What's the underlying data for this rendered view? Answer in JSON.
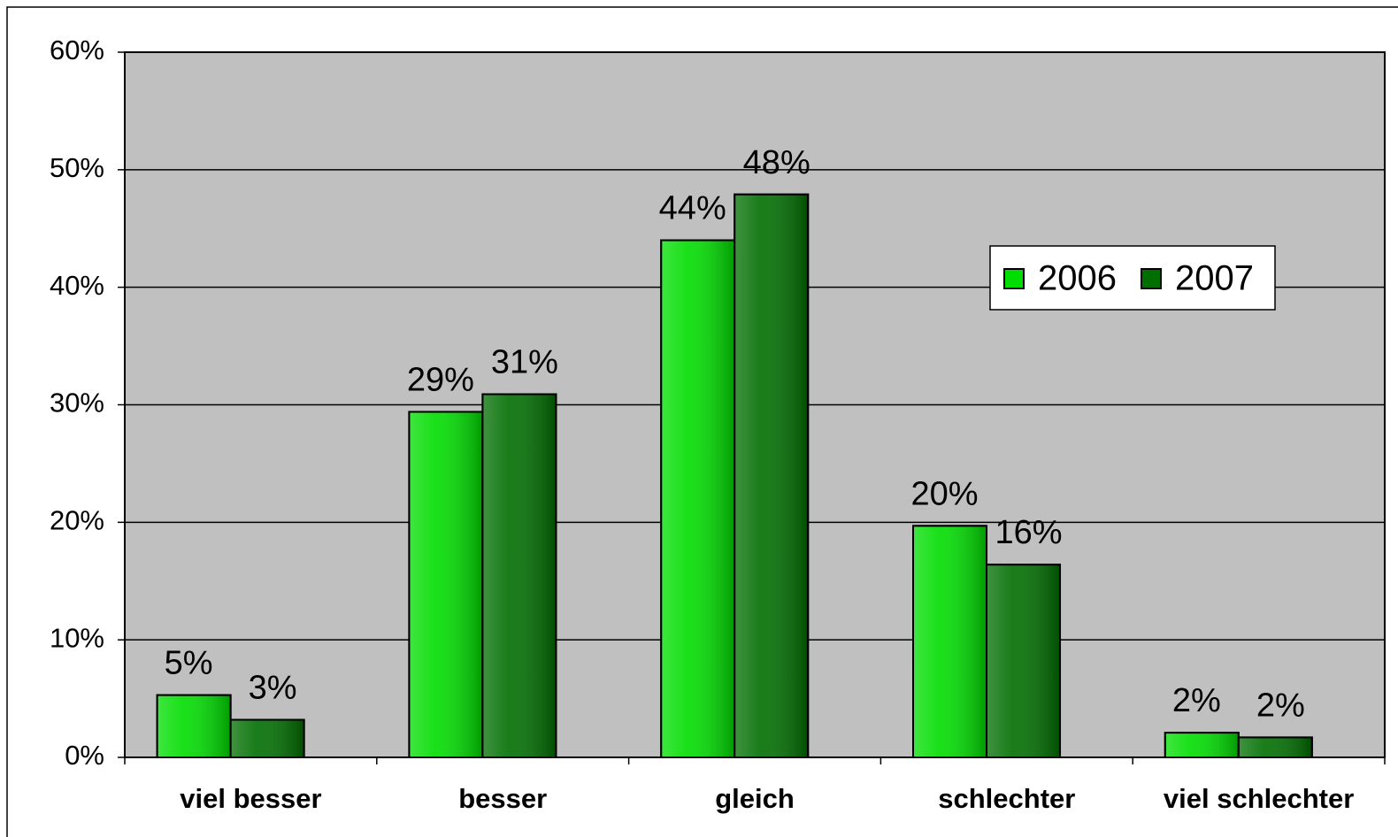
{
  "chart_data": {
    "type": "bar",
    "categories": [
      "viel besser",
      "besser",
      "gleich",
      "schlechter",
      "viel schlechter"
    ],
    "series": [
      {
        "name": "2006",
        "color": "#00dd00",
        "values": [
          5.3,
          29.4,
          44.0,
          19.7,
          2.1
        ],
        "value_labels": [
          "5%",
          "29%",
          "44%",
          "20%",
          "2%"
        ]
      },
      {
        "name": "2007",
        "color": "#006e00",
        "values": [
          3.2,
          30.9,
          47.9,
          16.4,
          1.7
        ],
        "value_labels": [
          "3%",
          "31%",
          "48%",
          "16%",
          "2%"
        ]
      }
    ],
    "ylim": [
      0,
      60
    ],
    "yticks": [
      {
        "value": 0,
        "label": "0%"
      },
      {
        "value": 10,
        "label": "10%"
      },
      {
        "value": 20,
        "label": "20%"
      },
      {
        "value": 30,
        "label": "30%"
      },
      {
        "value": 40,
        "label": "40%"
      },
      {
        "value": 50,
        "label": "50%"
      },
      {
        "value": 60,
        "label": "60%"
      }
    ],
    "grid": true,
    "legend": "right",
    "plot_background": "#c0c0c0"
  }
}
